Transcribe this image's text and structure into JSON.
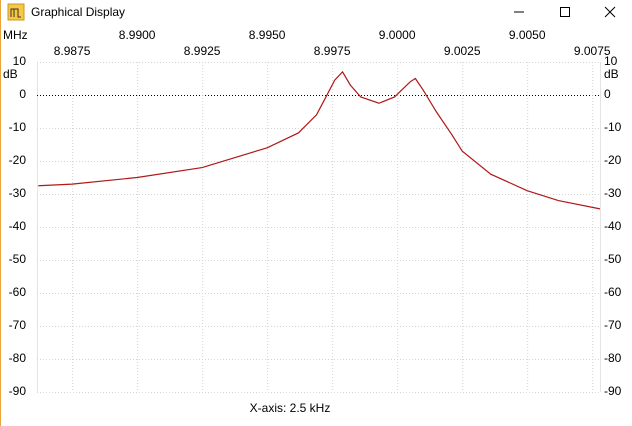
{
  "window": {
    "title": "Graphical Display"
  },
  "chart_data": {
    "type": "line",
    "x_unit": "MHz",
    "y_unit": "dB",
    "xlabel": "X-axis: 2.5 kHz",
    "x": [
      8.9862,
      8.9875,
      8.99,
      8.9925,
      8.995,
      8.9962,
      8.9969,
      8.9972,
      8.9976,
      8.9979,
      8.9982,
      8.9986,
      8.9993,
      8.9999,
      9.0005,
      9.0007,
      9.001,
      9.0015,
      9.0021,
      9.0025,
      9.0036,
      9.005,
      9.0062,
      9.0078
    ],
    "series": [
      {
        "color": "#b01818",
        "values": [
          -27.5,
          -27,
          -25,
          -22,
          -16,
          -11.5,
          -6,
          -1.5,
          4.5,
          7,
          3,
          -0.6,
          -2.5,
          -0.6,
          4,
          5,
          1.5,
          -5,
          -12,
          -17,
          -24,
          -29,
          -32,
          -34.5
        ]
      }
    ],
    "xlim": [
      8.98615,
      9.0078
    ],
    "xticks": [
      {
        "value": 8.9875,
        "label": "8.9875"
      },
      {
        "value": 8.99,
        "label": "8.9900"
      },
      {
        "value": 8.9925,
        "label": "8.9925"
      },
      {
        "value": 8.995,
        "label": "8.9950"
      },
      {
        "value": 8.9975,
        "label": "8.9975"
      },
      {
        "value": 9.0,
        "label": "9.0000"
      },
      {
        "value": 9.0025,
        "label": "9.0025"
      },
      {
        "value": 9.005,
        "label": "9.0050"
      },
      {
        "value": 9.0075,
        "label": "9.0075"
      }
    ],
    "ylim": [
      -90,
      10
    ],
    "yticks": [
      10,
      0,
      -10,
      -20,
      -30,
      -40,
      -50,
      -60,
      -70,
      -80,
      -90
    ],
    "grid": true
  }
}
